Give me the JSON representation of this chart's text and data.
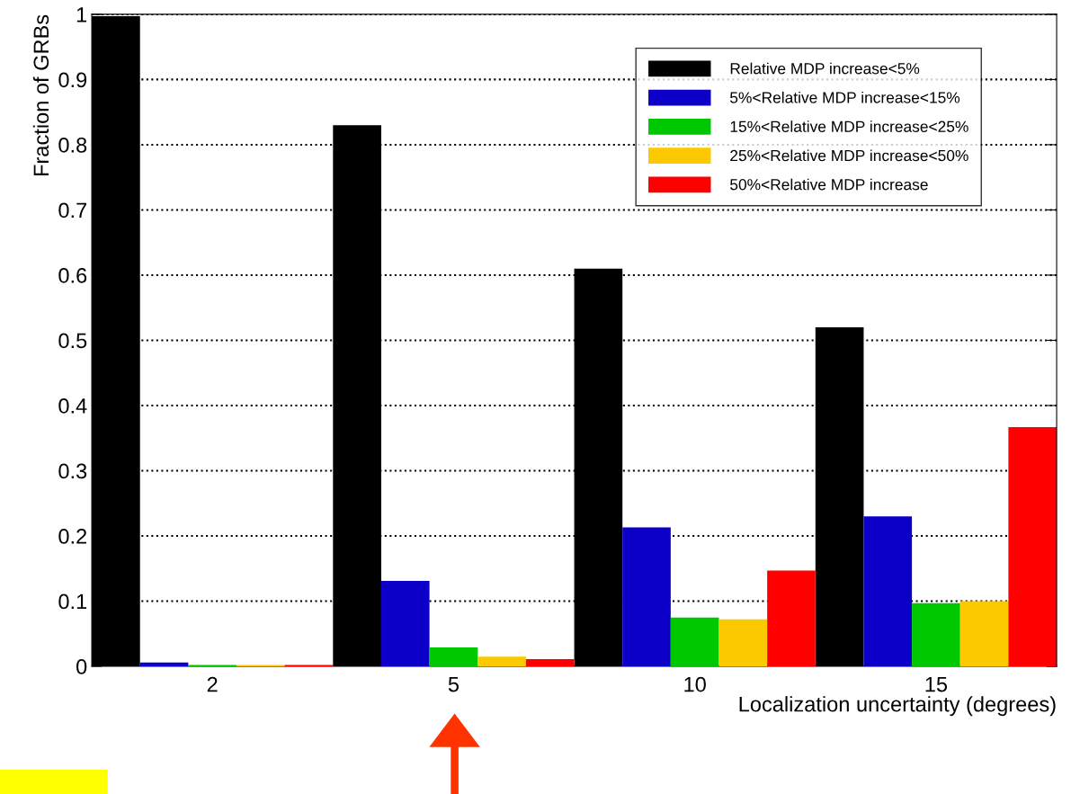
{
  "chart_data": {
    "type": "bar",
    "xlabel": "Localization uncertainty (degrees)",
    "ylabel": "Fraction of GRBs",
    "categories": [
      "2",
      "5",
      "10",
      "15"
    ],
    "series": [
      {
        "name": "Relative MDP increase<5%",
        "color": "#000000",
        "values": [
          0.997,
          0.83,
          0.61,
          0.52
        ]
      },
      {
        "name": "5%<Relative MDP increase<15%",
        "color": "#0c00c8",
        "values": [
          0.006,
          0.131,
          0.213,
          0.23
        ]
      },
      {
        "name": "15%<Relative MDP increase<25%",
        "color": "#00c800",
        "values": [
          0.002,
          0.029,
          0.075,
          0.097
        ]
      },
      {
        "name": "25%<Relative MDP increase<50%",
        "color": "#fcc800",
        "values": [
          0.002,
          0.015,
          0.072,
          0.1
        ]
      },
      {
        "name": "50%<Relative MDP increase",
        "color": "#ff0000",
        "values": [
          0.002,
          0.011,
          0.147,
          0.367
        ]
      }
    ],
    "ylim": [
      0,
      1
    ],
    "yticks": [
      0,
      0.1,
      0.2,
      0.3,
      0.4,
      0.5,
      0.6,
      0.7,
      0.8,
      0.9,
      1
    ],
    "grid": "y",
    "legend": "top right"
  }
}
